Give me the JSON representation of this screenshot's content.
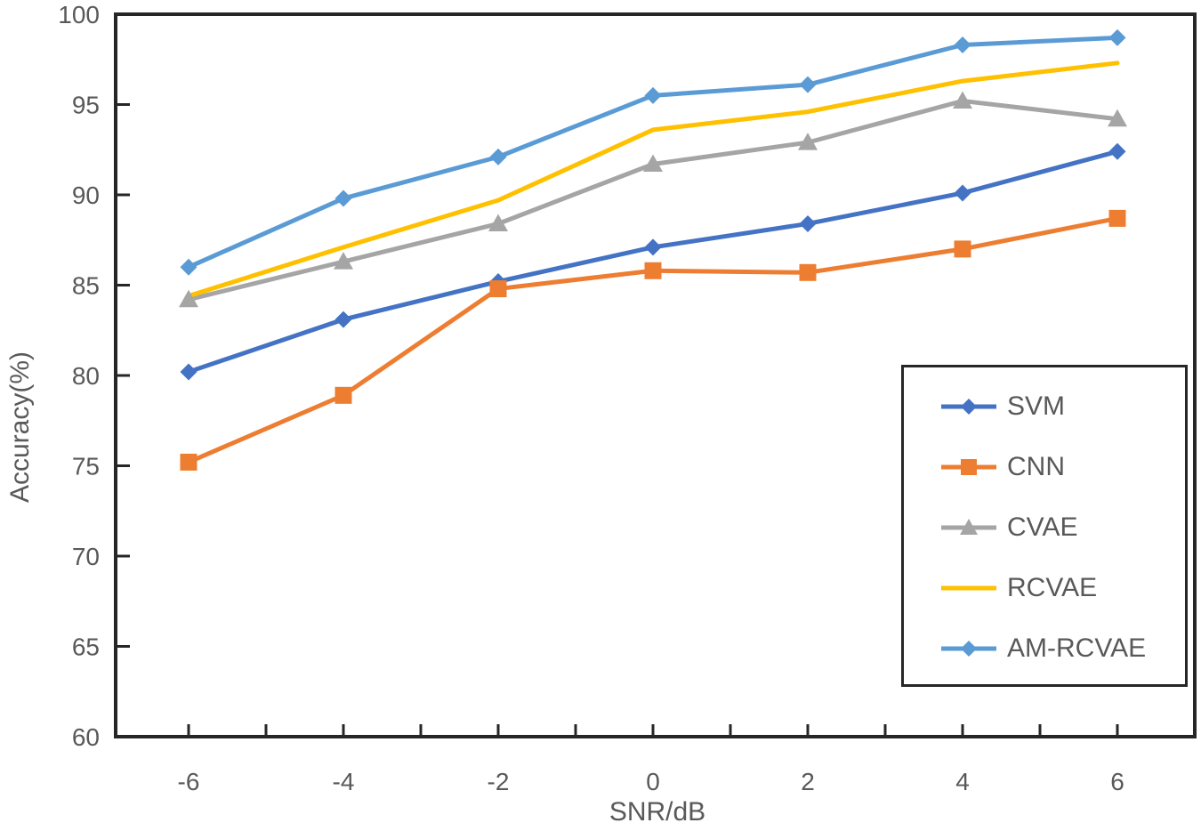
{
  "chart_data": {
    "type": "line",
    "title": "",
    "xlabel": "SNR/dB",
    "ylabel": "Accuracy(%)",
    "x": [
      -6,
      -4,
      -2,
      0,
      2,
      4,
      6
    ],
    "xlim": [
      -7,
      7
    ],
    "ylim": [
      60,
      100
    ],
    "y_ticks": [
      60,
      65,
      70,
      75,
      80,
      85,
      90,
      95,
      100
    ],
    "x_tick_labels": [
      "-6",
      "-4",
      "-2",
      "0",
      "2",
      "4",
      "6"
    ],
    "x_minor_ticks": [
      -6,
      -5,
      -4,
      -3,
      -2,
      -1,
      0,
      1,
      2,
      3,
      4,
      5,
      6
    ],
    "grid": false,
    "legend_position": "inside-right",
    "axis_color": "#262626",
    "text_color": "#595959",
    "series": [
      {
        "name": "SVM",
        "color": "#4472C4",
        "marker": "diamond",
        "values": [
          80.2,
          83.1,
          85.2,
          87.1,
          88.4,
          90.1,
          92.4
        ]
      },
      {
        "name": "CNN",
        "color": "#ED7D31",
        "marker": "square",
        "values": [
          75.2,
          78.9,
          84.8,
          85.8,
          85.7,
          87.0,
          88.7
        ]
      },
      {
        "name": "CVAE",
        "color": "#A5A5A5",
        "marker": "triangle",
        "values": [
          84.2,
          86.3,
          88.4,
          91.7,
          92.9,
          95.2,
          94.2
        ]
      },
      {
        "name": "RCVAE",
        "color": "#FFC000",
        "marker": "none",
        "values": [
          84.4,
          87.1,
          89.7,
          93.6,
          94.6,
          96.3,
          97.3
        ]
      },
      {
        "name": "AM-RCVAE",
        "color": "#5B9BD5",
        "marker": "diamond",
        "values": [
          86.0,
          89.8,
          92.1,
          95.5,
          96.1,
          98.3,
          98.7
        ]
      }
    ]
  }
}
